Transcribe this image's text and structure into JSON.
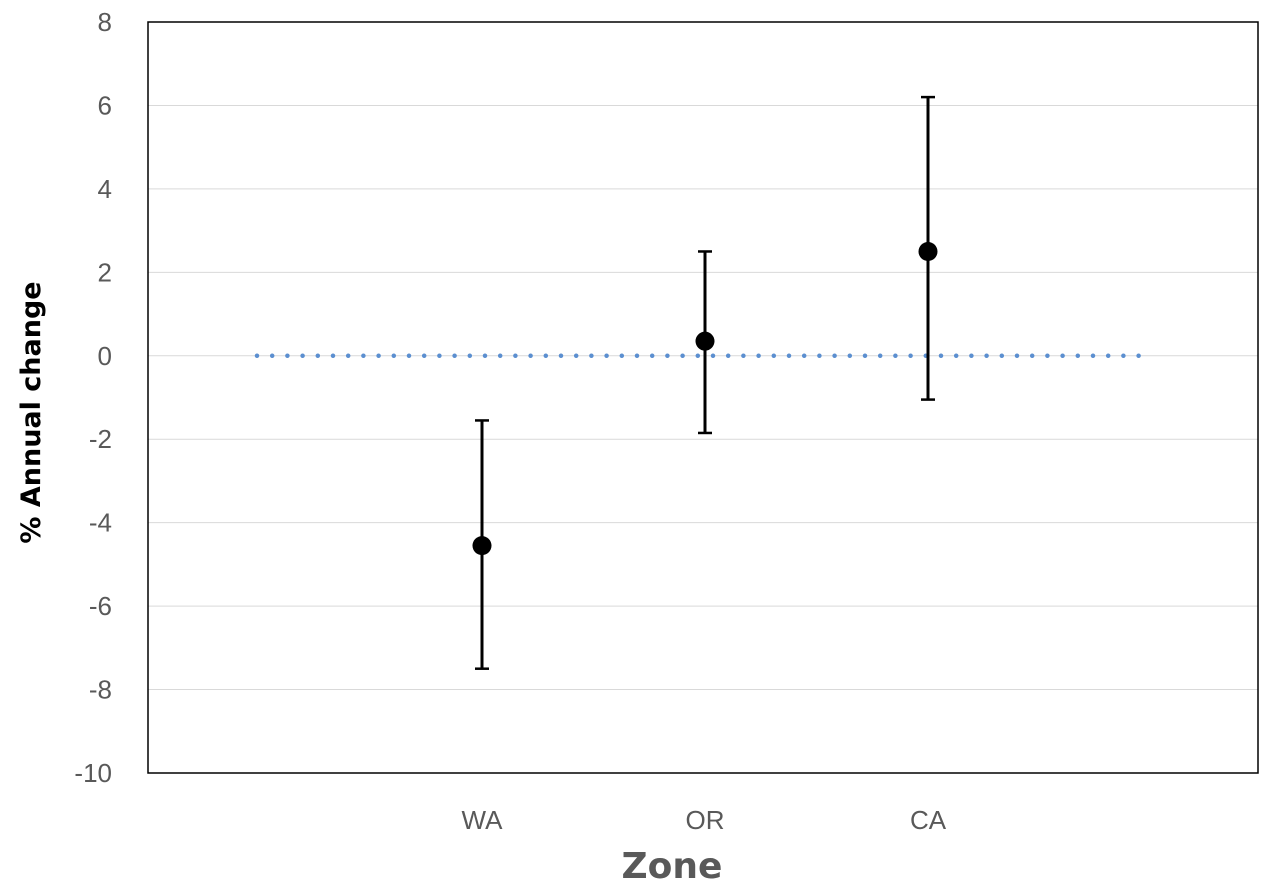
{
  "chart_data": {
    "type": "scatter",
    "title": "",
    "xlabel": "Zone",
    "ylabel": "% Annual change",
    "categories": [
      "WA",
      "OR",
      "CA"
    ],
    "series": [
      {
        "values": [
          -4.55,
          0.35,
          2.5
        ],
        "error_low": [
          -7.5,
          -1.85,
          -1.05
        ],
        "error_high": [
          -1.55,
          2.5,
          6.2
        ]
      }
    ],
    "reference_line": {
      "y": 0,
      "style": "dotted",
      "color": "#5b8fd0"
    },
    "ylim": [
      -10,
      8
    ],
    "yticks": [
      -10,
      -8,
      -6,
      -4,
      -2,
      0,
      2,
      4,
      6,
      8
    ],
    "grid": true,
    "legend": "none",
    "colors": {
      "marker": "#000000",
      "error_bar": "#000000",
      "grid": "#d9d9d9",
      "axis": "#000000"
    }
  }
}
